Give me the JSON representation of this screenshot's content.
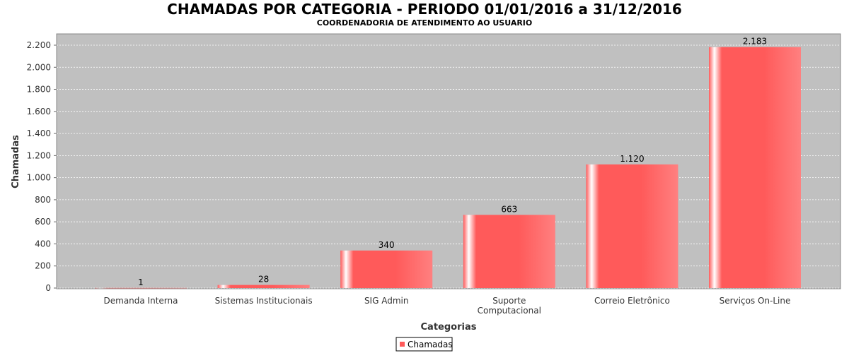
{
  "chart_data": {
    "type": "bar",
    "title": "CHAMADAS POR CATEGORIA - PERIODO 01/01/2016 a 31/12/2016",
    "subtitle": "COORDENADORIA DE ATENDIMENTO AO USUARIO",
    "xlabel": "Categorias",
    "ylabel": "Chamadas",
    "categories": [
      [
        "Demanda Interna"
      ],
      [
        "Sistemas Institucionais"
      ],
      [
        "SIG Admin"
      ],
      [
        "Suporte",
        "Computacional"
      ],
      [
        "Correio Eletrônico"
      ],
      [
        "Serviços On-Line"
      ]
    ],
    "series": [
      {
        "name": "Chamadas",
        "values": [
          1,
          28,
          340,
          663,
          1120,
          2183
        ]
      }
    ],
    "value_labels": [
      "1",
      "28",
      "340",
      "663",
      "1.120",
      "2.183"
    ],
    "yticks": [
      0,
      200,
      400,
      600,
      800,
      1000,
      1200,
      1400,
      1600,
      1800,
      2000,
      2200
    ],
    "ytick_labels": [
      "0",
      "200",
      "400",
      "600",
      "800",
      "1.000",
      "1.200",
      "1.400",
      "1.600",
      "1.800",
      "2.000",
      "2.200"
    ],
    "ylim": [
      0,
      2200
    ],
    "grid": true,
    "legend_position": "bottom-center",
    "colors": {
      "bar": "#ff5a5a",
      "plot_background": "#c0c0c0",
      "grid": "#ffffff"
    }
  }
}
